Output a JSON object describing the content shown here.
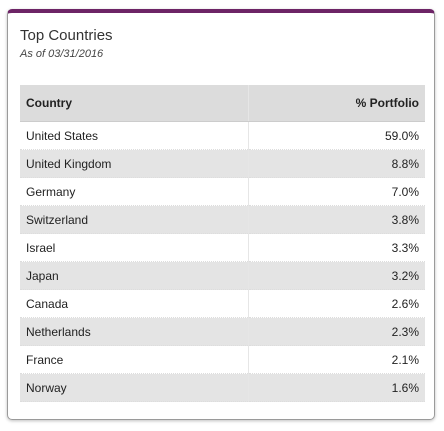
{
  "header": {
    "title": "Top Countries",
    "subtitle": "As of 03/31/2016"
  },
  "table": {
    "columns": [
      "Country",
      "% Portfolio"
    ],
    "rows": [
      [
        "United States",
        "59.0%"
      ],
      [
        "United Kingdom",
        "8.8%"
      ],
      [
        "Germany",
        "7.0%"
      ],
      [
        "Switzerland",
        "3.8%"
      ],
      [
        "Israel",
        "3.3%"
      ],
      [
        "Japan",
        "3.2%"
      ],
      [
        "Canada",
        "2.6%"
      ],
      [
        "Netherlands",
        "2.3%"
      ],
      [
        "France",
        "2.1%"
      ],
      [
        "Norway",
        "1.6%"
      ]
    ]
  }
}
